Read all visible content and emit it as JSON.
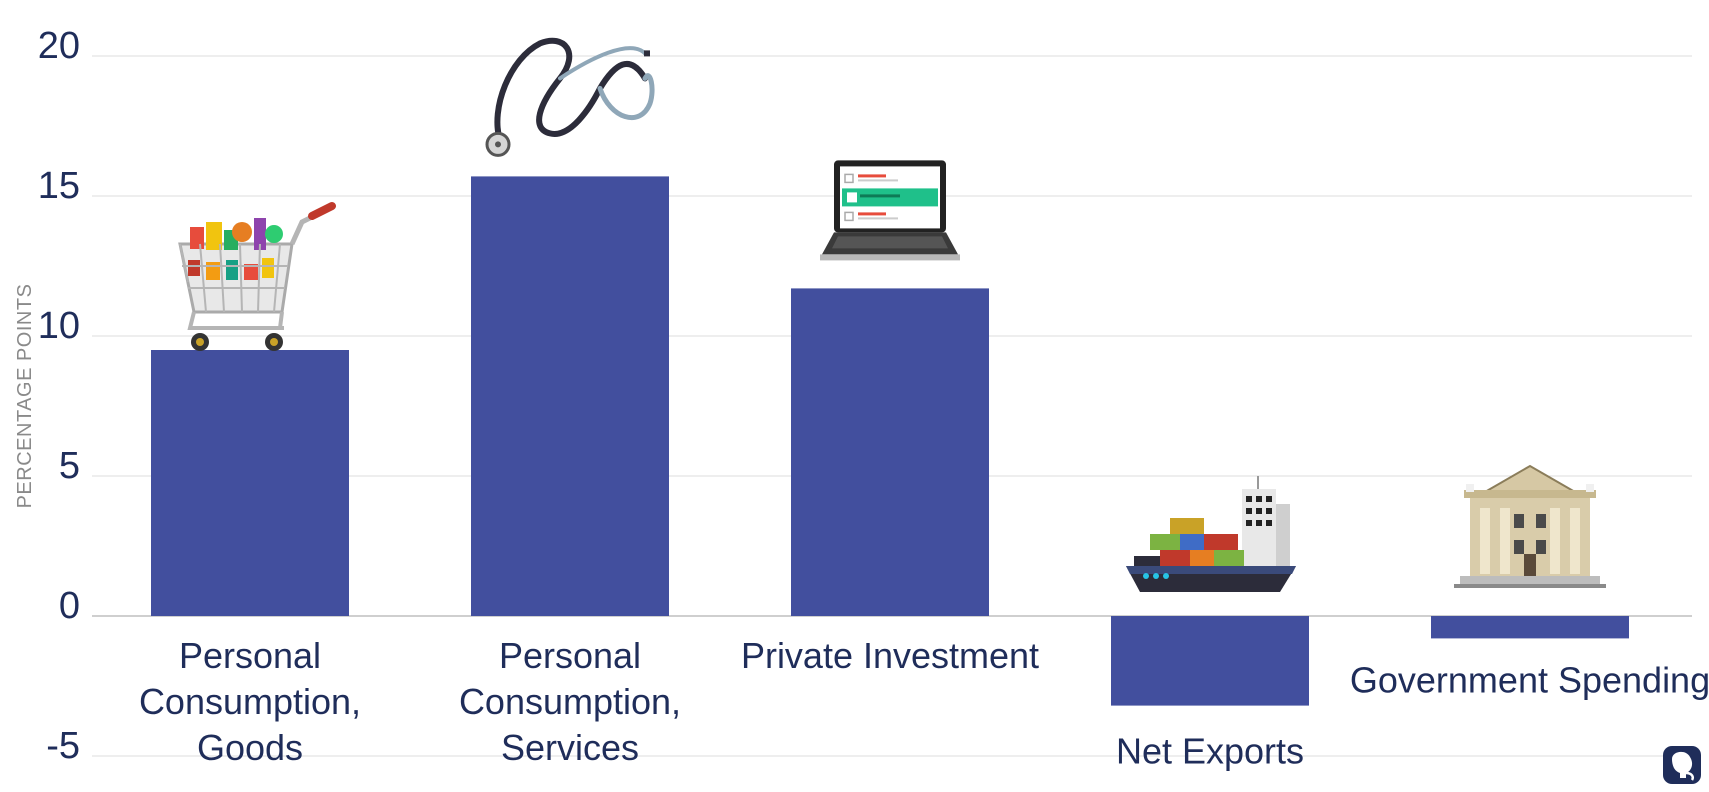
{
  "chart_data": {
    "type": "bar",
    "title": "",
    "xlabel": "",
    "ylabel": "PERCENTAGE POINTS",
    "ylim": [
      -5,
      20
    ],
    "yticks": [
      -5,
      0,
      5,
      10,
      15,
      20
    ],
    "grid": true,
    "categories": [
      [
        "Personal",
        "Consumption,",
        "Goods"
      ],
      [
        "Personal",
        "Consumption,",
        "Services"
      ],
      [
        "Private Investment"
      ],
      [
        "Net Exports"
      ],
      [
        "Government Spending"
      ]
    ],
    "values": [
      9.5,
      15.7,
      11.7,
      -3.2,
      -0.8
    ],
    "bar_color": "#424f9e",
    "icons": [
      "shopping-cart-icon",
      "stethoscope-icon",
      "laptop-checklist-icon",
      "cargo-ship-icon",
      "government-building-icon"
    ]
  },
  "logo": {
    "name": "elephant-logo-icon",
    "color": "#1f2d5a"
  }
}
